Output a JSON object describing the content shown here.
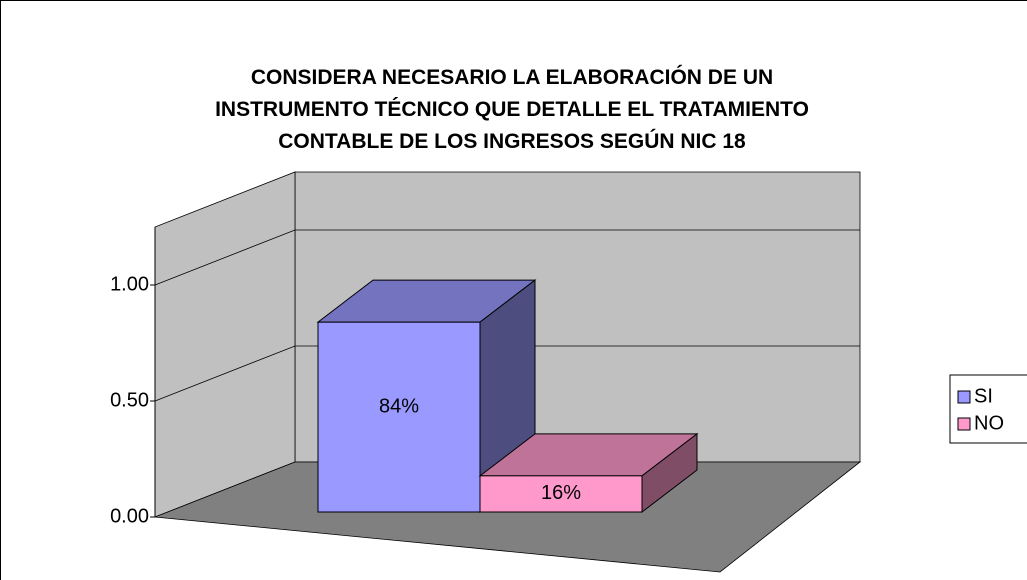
{
  "chart_data": {
    "type": "bar3d",
    "title": "CONSIDERA NECESARIO LA ELABORACIÓN DE UN INSTRUMENTO TÉCNICO QUE DETALLE EL TRATAMIENTO CONTABLE DE LOS INGRESOS SEGÚN NIC 18",
    "series": [
      {
        "name": "SI",
        "color": "#9999ff",
        "values": [
          0.84
        ],
        "value_labels": [
          "84%"
        ]
      },
      {
        "name": "NO",
        "color": "#ff99cc",
        "values": [
          0.16
        ],
        "value_labels": [
          "16%"
        ]
      }
    ],
    "ylim": [
      0,
      1.25
    ],
    "yticks": [
      {
        "value": 0,
        "label": "0.00"
      },
      {
        "value": 0.5,
        "label": "0.50"
      },
      {
        "value": 1,
        "label": "1.00"
      }
    ],
    "grid": true,
    "legend": "right"
  }
}
